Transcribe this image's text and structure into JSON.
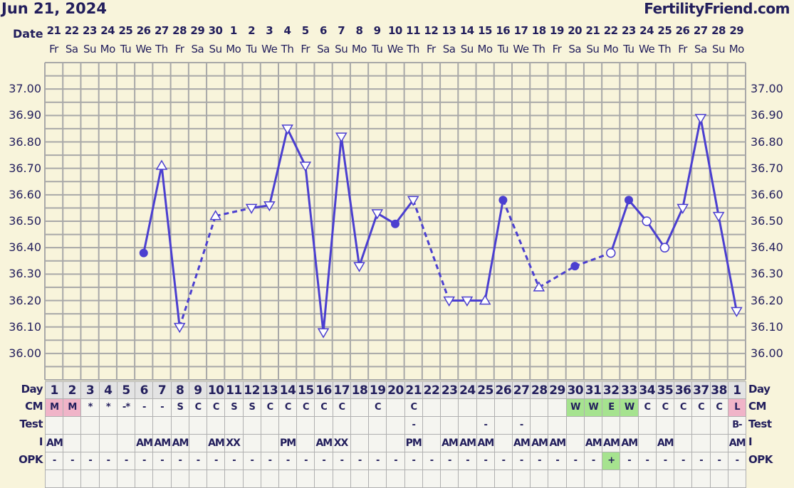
{
  "header": {
    "title": "Jun 21, 2024",
    "brand": "FertilityFriend.com",
    "date_label": "Date"
  },
  "row_labels": {
    "day": "Day",
    "cm": "CM",
    "test": "Test",
    "i": "I",
    "opk": "OPK"
  },
  "colors": {
    "background": "#f8f4db",
    "line": "#4b3fd0",
    "text": "#221e5c",
    "grid": "#a8a8a8",
    "menstruation": "#f0b4c8",
    "fertile": "#a6e38f"
  },
  "chart_data": {
    "type": "line",
    "ylim": [
      35.9,
      37.1
    ],
    "y_ticks": [
      "37.00",
      "36.90",
      "36.80",
      "36.70",
      "36.60",
      "36.50",
      "36.40",
      "36.30",
      "36.20",
      "36.10",
      "36.00"
    ],
    "grid": true,
    "days": [
      {
        "date": "21",
        "wd": "Fr",
        "cd": "1",
        "temp": null,
        "marker": null,
        "cm": "M",
        "test": "",
        "i": "AM",
        "opk": "-"
      },
      {
        "date": "22",
        "wd": "Sa",
        "cd": "2",
        "temp": null,
        "marker": null,
        "cm": "M",
        "test": "",
        "i": "",
        "opk": "-"
      },
      {
        "date": "23",
        "wd": "Su",
        "cd": "3",
        "temp": null,
        "marker": null,
        "cm": "*",
        "test": "",
        "i": "",
        "opk": "-"
      },
      {
        "date": "24",
        "wd": "Mo",
        "cd": "4",
        "temp": null,
        "marker": null,
        "cm": "*",
        "test": "",
        "i": "",
        "opk": "-"
      },
      {
        "date": "25",
        "wd": "Tu",
        "cd": "5",
        "temp": null,
        "marker": null,
        "cm": "-*",
        "test": "",
        "i": "",
        "opk": "-"
      },
      {
        "date": "26",
        "wd": "We",
        "cd": "6",
        "temp": 36.38,
        "marker": "filled-circle",
        "cm": "-",
        "test": "",
        "i": "AM",
        "opk": "-"
      },
      {
        "date": "27",
        "wd": "Th",
        "cd": "7",
        "temp": 36.71,
        "marker": "triangle-up",
        "cm": "-",
        "test": "",
        "i": "AM",
        "opk": "-"
      },
      {
        "date": "28",
        "wd": "Fr",
        "cd": "8",
        "temp": 36.1,
        "marker": "triangle-down",
        "cm": "S",
        "test": "",
        "i": "AM",
        "opk": "-"
      },
      {
        "date": "29",
        "wd": "Sa",
        "cd": "9",
        "temp": null,
        "marker": null,
        "cm": "C",
        "test": "",
        "i": "",
        "opk": "-"
      },
      {
        "date": "30",
        "wd": "Su",
        "cd": "10",
        "temp": 36.52,
        "marker": "triangle-up",
        "cm": "C",
        "test": "",
        "i": "AM",
        "opk": "-"
      },
      {
        "date": "1",
        "wd": "Mo",
        "cd": "11",
        "temp": null,
        "marker": null,
        "cm": "S",
        "test": "",
        "i": "XX",
        "opk": "-"
      },
      {
        "date": "2",
        "wd": "Tu",
        "cd": "12",
        "temp": 36.55,
        "marker": "triangle-down",
        "cm": "S",
        "test": "",
        "i": "",
        "opk": "-"
      },
      {
        "date": "3",
        "wd": "We",
        "cd": "13",
        "temp": 36.56,
        "marker": "triangle-down",
        "cm": "C",
        "test": "",
        "i": "",
        "opk": "-"
      },
      {
        "date": "4",
        "wd": "Th",
        "cd": "14",
        "temp": 36.85,
        "marker": "triangle-down",
        "cm": "C",
        "test": "",
        "i": "PM",
        "opk": "-"
      },
      {
        "date": "5",
        "wd": "Fr",
        "cd": "15",
        "temp": 36.71,
        "marker": "triangle-down",
        "cm": "C",
        "test": "",
        "i": "",
        "opk": "-"
      },
      {
        "date": "6",
        "wd": "Sa",
        "cd": "16",
        "temp": 36.08,
        "marker": "triangle-down",
        "cm": "C",
        "test": "",
        "i": "AM",
        "opk": "-"
      },
      {
        "date": "7",
        "wd": "Su",
        "cd": "17",
        "temp": 36.82,
        "marker": "triangle-down",
        "cm": "C",
        "test": "",
        "i": "XX",
        "opk": "-"
      },
      {
        "date": "8",
        "wd": "Mo",
        "cd": "18",
        "temp": 36.33,
        "marker": "triangle-down",
        "cm": "",
        "test": "",
        "i": "",
        "opk": "-"
      },
      {
        "date": "9",
        "wd": "Tu",
        "cd": "19",
        "temp": 36.53,
        "marker": "triangle-down",
        "cm": "C",
        "test": "",
        "i": "",
        "opk": "-"
      },
      {
        "date": "10",
        "wd": "We",
        "cd": "20",
        "temp": 36.49,
        "marker": "filled-circle",
        "cm": "",
        "test": "",
        "i": "",
        "opk": "-"
      },
      {
        "date": "11",
        "wd": "Th",
        "cd": "21",
        "temp": 36.58,
        "marker": "triangle-down",
        "cm": "C",
        "test": "-",
        "i": "PM",
        "opk": "-"
      },
      {
        "date": "12",
        "wd": "Fr",
        "cd": "22",
        "temp": null,
        "marker": null,
        "cm": "",
        "test": "",
        "i": "",
        "opk": "-"
      },
      {
        "date": "13",
        "wd": "Sa",
        "cd": "23",
        "temp": 36.2,
        "marker": "triangle-down",
        "cm": "",
        "test": "",
        "i": "AM",
        "opk": "-"
      },
      {
        "date": "14",
        "wd": "Su",
        "cd": "24",
        "temp": 36.2,
        "marker": "triangle-down",
        "cm": "",
        "test": "",
        "i": "AM",
        "opk": "-"
      },
      {
        "date": "15",
        "wd": "Mo",
        "cd": "25",
        "temp": 36.2,
        "marker": "triangle-up",
        "cm": "",
        "test": "-",
        "i": "AM",
        "opk": "-"
      },
      {
        "date": "16",
        "wd": "Tu",
        "cd": "26",
        "temp": 36.58,
        "marker": "filled-circle",
        "cm": "",
        "test": "",
        "i": "",
        "opk": "-"
      },
      {
        "date": "17",
        "wd": "We",
        "cd": "27",
        "temp": null,
        "marker": null,
        "cm": "",
        "test": "-",
        "i": "AM",
        "opk": "-"
      },
      {
        "date": "18",
        "wd": "Th",
        "cd": "28",
        "temp": 36.25,
        "marker": "triangle-up",
        "cm": "",
        "test": "",
        "i": "AM",
        "opk": "-"
      },
      {
        "date": "19",
        "wd": "Fr",
        "cd": "29",
        "temp": null,
        "marker": null,
        "cm": "",
        "test": "",
        "i": "AM",
        "opk": "-"
      },
      {
        "date": "20",
        "wd": "Sa",
        "cd": "30",
        "temp": 36.33,
        "marker": "filled-circle",
        "cm": "W",
        "test": "",
        "i": "",
        "opk": "-"
      },
      {
        "date": "21",
        "wd": "Su",
        "cd": "31",
        "temp": null,
        "marker": null,
        "cm": "W",
        "test": "",
        "i": "AM",
        "opk": "-"
      },
      {
        "date": "22",
        "wd": "Mo",
        "cd": "32",
        "temp": 36.38,
        "marker": "open-circle",
        "cm": "E",
        "test": "",
        "i": "AM",
        "opk": "+"
      },
      {
        "date": "23",
        "wd": "Tu",
        "cd": "33",
        "temp": 36.58,
        "marker": "filled-circle",
        "cm": "W",
        "test": "",
        "i": "AM",
        "opk": "-"
      },
      {
        "date": "24",
        "wd": "We",
        "cd": "34",
        "temp": 36.5,
        "marker": "open-circle",
        "cm": "C",
        "test": "",
        "i": "",
        "opk": "-"
      },
      {
        "date": "25",
        "wd": "Th",
        "cd": "35",
        "temp": 36.4,
        "marker": "open-circle",
        "cm": "C",
        "test": "",
        "i": "AM",
        "opk": "-"
      },
      {
        "date": "26",
        "wd": "Fr",
        "cd": "36",
        "temp": 36.55,
        "marker": "triangle-down",
        "cm": "C",
        "test": "",
        "i": "",
        "opk": "-"
      },
      {
        "date": "27",
        "wd": "Sa",
        "cd": "37",
        "temp": 36.89,
        "marker": "triangle-down",
        "cm": "C",
        "test": "",
        "i": "",
        "opk": "-"
      },
      {
        "date": "28",
        "wd": "Su",
        "cd": "38",
        "temp": 36.52,
        "marker": "triangle-down",
        "cm": "C",
        "test": "",
        "i": "",
        "opk": "-"
      },
      {
        "date": "29",
        "wd": "Mo",
        "cd": "1",
        "temp": 36.16,
        "marker": "triangle-down",
        "cm": "L",
        "test": "B-",
        "i": "AM",
        "opk": "-"
      }
    ]
  }
}
